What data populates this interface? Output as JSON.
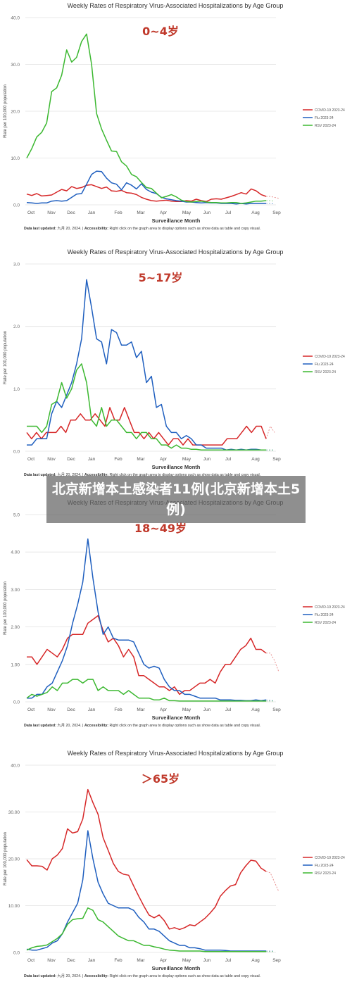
{
  "overlay_text": "北京新增本土感染者11例(北京新增本土5例)",
  "chart_data": [
    {
      "type": "line",
      "title": "Weekly Rates of Respiratory Virus-Associated Hospitalizations by Age Group",
      "subtitle": "0~4岁",
      "ylabel": "Rate per 100,000 population",
      "xlabel": "Surveillance Month",
      "ylim": [
        0,
        40
      ],
      "yticks": [
        "0.0",
        "10.0",
        "20.0",
        "30.0",
        "40.0"
      ],
      "xticks": [
        "Oct",
        "Nov",
        "Dec",
        "Jan",
        "Feb",
        "Mar",
        "Apr",
        "May",
        "Jun",
        "Jul",
        "Aug",
        "Sep"
      ],
      "note_label": "Data last updated:",
      "note_date": "九月 20, 2024.",
      "note_sep": " | ",
      "note_acc_label": "Accessibility:",
      "note_acc_text": " Right click on the graph area to display options such as show data as table and copy visual.",
      "series": [
        {
          "name": "COVID-19 2023-24",
          "color": "#d62728",
          "values": [
            2.3,
            2.0,
            2.4,
            1.9,
            2.0,
            2.1,
            2.7,
            3.3,
            3.0,
            3.9,
            3.5,
            3.7,
            4.2,
            4.3,
            3.9,
            3.5,
            3.8,
            3.0,
            2.9,
            3.1,
            2.6,
            2.5,
            2.2,
            1.6,
            1.2,
            0.9,
            0.8,
            0.9,
            1.0,
            0.8,
            0.7,
            0.7,
            0.9,
            0.8,
            1.2,
            0.9,
            0.7,
            1.2,
            1.3,
            1.2,
            1.5,
            1.8,
            2.2,
            2.6,
            2.3,
            3.4,
            3.0,
            2.2,
            1.8
          ],
          "projection": [
            1.8,
            1.6,
            1.4
          ]
        },
        {
          "name": "Flu 2023-24",
          "color": "#1f5fbf",
          "values": [
            0.5,
            0.4,
            0.3,
            0.4,
            0.4,
            0.8,
            0.9,
            0.8,
            0.9,
            1.6,
            2.3,
            2.4,
            4.4,
            6.5,
            7.2,
            7.1,
            5.7,
            4.7,
            4.4,
            3.2,
            4.7,
            4.2,
            3.4,
            4.5,
            3.3,
            2.7,
            2.4,
            1.6,
            1.3,
            1.1,
            0.9,
            0.8,
            0.6,
            0.6,
            0.5,
            0.4,
            0.5,
            0.4,
            0.4,
            0.3,
            0.3,
            0.3,
            0.2,
            0.3,
            0.2,
            0.3,
            0.3,
            0.3,
            0.3
          ],
          "projection": [
            0.3,
            0.2
          ]
        },
        {
          "name": "RSV 2023-24",
          "color": "#3cb831",
          "values": [
            10.0,
            12.0,
            14.5,
            15.5,
            17.5,
            24.2,
            25.0,
            27.7,
            33.1,
            30.5,
            31.5,
            34.9,
            36.5,
            30.0,
            19.5,
            16.2,
            13.8,
            11.5,
            11.4,
            9.2,
            8.3,
            6.5,
            6.0,
            4.8,
            3.7,
            3.5,
            2.5,
            1.5,
            1.8,
            2.2,
            1.7,
            1.0,
            0.7,
            0.6,
            0.7,
            0.8,
            0.6,
            0.5,
            0.5,
            0.4,
            0.4,
            0.5,
            0.5,
            0.3,
            0.4,
            0.6,
            0.8,
            0.8,
            0.9
          ],
          "projection": [
            0.9,
            0.8
          ]
        }
      ]
    },
    {
      "type": "line",
      "title": "Weekly Rates of Respiratory Virus-Associated Hospitalizations by Age Group",
      "subtitle": "5~17岁",
      "ylabel": "Rate per 100,000 population",
      "xlabel": "Surveillance Month",
      "ylim": [
        0,
        3
      ],
      "yticks": [
        "0.0",
        "1.0",
        "2.0",
        "3.0"
      ],
      "xticks": [
        "Oct",
        "Nov",
        "Dec",
        "Jan",
        "Feb",
        "Mar",
        "Apr",
        "May",
        "Jun",
        "Jul",
        "Aug",
        "Sep"
      ],
      "note_label": "Data last updated:",
      "note_date": "九月 20, 2024.",
      "note_sep": " | ",
      "note_acc_label": "Accessibility:",
      "note_acc_text": " Right click on the graph area to display options such as show data as table and copy visual.",
      "series": [
        {
          "name": "COVID-19 2023-24",
          "color": "#d62728",
          "values": [
            0.3,
            0.2,
            0.3,
            0.2,
            0.3,
            0.3,
            0.3,
            0.4,
            0.3,
            0.5,
            0.5,
            0.6,
            0.5,
            0.5,
            0.6,
            0.5,
            0.4,
            0.7,
            0.5,
            0.5,
            0.7,
            0.5,
            0.3,
            0.3,
            0.2,
            0.3,
            0.2,
            0.3,
            0.2,
            0.1,
            0.2,
            0.2,
            0.1,
            0.2,
            0.1,
            0.1,
            0.1,
            0.1,
            0.1,
            0.1,
            0.1,
            0.2,
            0.2,
            0.2,
            0.3,
            0.4,
            0.3,
            0.4,
            0.4,
            0.2
          ],
          "projection": [
            0.4,
            0.3
          ]
        },
        {
          "name": "Flu 2023-24",
          "color": "#1f5fbf",
          "values": [
            0.1,
            0.1,
            0.2,
            0.2,
            0.2,
            0.6,
            0.8,
            0.7,
            0.9,
            1.1,
            1.4,
            1.8,
            2.75,
            2.3,
            1.8,
            1.75,
            1.4,
            1.95,
            1.9,
            1.7,
            1.7,
            1.75,
            1.5,
            1.6,
            1.1,
            1.2,
            0.7,
            0.75,
            0.4,
            0.3,
            0.3,
            0.2,
            0.25,
            0.2,
            0.1,
            0.1,
            0.05,
            0.05,
            0.05,
            0.05,
            0.02,
            0.03,
            0.02,
            0.03,
            0.02,
            0.03,
            0.03,
            0.02,
            0.02
          ],
          "projection": [
            0.02,
            0.02
          ]
        },
        {
          "name": "RSV 2023-24",
          "color": "#3cb831",
          "values": [
            0.4,
            0.4,
            0.4,
            0.3,
            0.4,
            0.75,
            0.8,
            1.1,
            0.85,
            1.0,
            1.3,
            1.4,
            1.1,
            0.5,
            0.4,
            0.7,
            0.4,
            0.5,
            0.5,
            0.4,
            0.3,
            0.3,
            0.2,
            0.3,
            0.3,
            0.2,
            0.2,
            0.1,
            0.1,
            0.05,
            0.1,
            0.05,
            0.05,
            0.03,
            0.03,
            0.02,
            0.02,
            0.02,
            0.02,
            0.02,
            0.02,
            0.02,
            0.02,
            0.02,
            0.02,
            0.02,
            0.02,
            0.02,
            0.02
          ],
          "projection": [
            0.02,
            0.02
          ]
        }
      ]
    },
    {
      "type": "line",
      "title": "Weekly Rates of Respiratory Virus-Associated Hospitalizations by Age Group",
      "subtitle": "18~49岁",
      "ylabel": "Rate per 100,000 population",
      "xlabel": "Surveillance Month",
      "ylim": [
        0,
        5
      ],
      "yticks": [
        "0.0",
        "1.00",
        "2.00",
        "3.00",
        "4.00",
        "5.0"
      ],
      "xticks": [
        "Oct",
        "Nov",
        "Dec",
        "Jan",
        "Feb",
        "Mar",
        "Apr",
        "May",
        "Jun",
        "Jul",
        "Aug",
        "Sep"
      ],
      "note_label": "Data last updated:",
      "note_date": "九月 20, 2024.",
      "note_sep": " | ",
      "note_acc_label": "Accessibility:",
      "note_acc_text": " Right click on the graph area to display options such as show data as table and copy visual.",
      "series": [
        {
          "name": "COVID-19 2023-24",
          "color": "#d62728",
          "values": [
            1.2,
            1.2,
            1.0,
            1.2,
            1.4,
            1.3,
            1.2,
            1.4,
            1.7,
            1.8,
            1.8,
            1.8,
            2.1,
            2.2,
            2.3,
            1.9,
            1.6,
            1.7,
            1.5,
            1.2,
            1.4,
            1.2,
            0.7,
            0.7,
            0.6,
            0.5,
            0.4,
            0.4,
            0.3,
            0.4,
            0.2,
            0.3,
            0.3,
            0.4,
            0.5,
            0.5,
            0.6,
            0.5,
            0.8,
            1.0,
            1.0,
            1.2,
            1.4,
            1.5,
            1.7,
            1.4,
            1.4,
            1.3
          ],
          "projection": [
            1.3,
            1.1,
            0.8
          ]
        },
        {
          "name": "Flu 2023-24",
          "color": "#1f5fbf",
          "values": [
            0.1,
            0.1,
            0.2,
            0.2,
            0.4,
            0.5,
            0.8,
            1.1,
            1.5,
            2.1,
            2.6,
            3.2,
            4.35,
            3.3,
            2.4,
            1.8,
            2.0,
            1.7,
            1.65,
            1.65,
            1.65,
            1.6,
            1.3,
            1.0,
            0.9,
            0.95,
            0.9,
            0.6,
            0.4,
            0.3,
            0.3,
            0.2,
            0.2,
            0.15,
            0.1,
            0.1,
            0.1,
            0.1,
            0.05,
            0.05,
            0.05,
            0.04,
            0.04,
            0.03,
            0.03,
            0.05,
            0.03,
            0.05
          ],
          "projection": [
            0.04,
            0.03
          ]
        },
        {
          "name": "RSV 2023-24",
          "color": "#3cb831",
          "values": [
            0.1,
            0.2,
            0.15,
            0.2,
            0.25,
            0.4,
            0.3,
            0.5,
            0.5,
            0.6,
            0.6,
            0.5,
            0.6,
            0.6,
            0.3,
            0.4,
            0.3,
            0.3,
            0.3,
            0.2,
            0.3,
            0.2,
            0.1,
            0.1,
            0.1,
            0.05,
            0.05,
            0.1,
            0.03,
            0.03,
            0.02,
            0.02,
            0.02,
            0.02,
            0.02,
            0.02,
            0.02,
            0.02,
            0.02,
            0.02,
            0.02,
            0.02,
            0.02,
            0.02,
            0.02,
            0.02,
            0.02,
            0.02
          ],
          "projection": [
            0.02,
            0.02
          ]
        }
      ]
    },
    {
      "type": "line",
      "title": "Weekly Rates of Respiratory Virus-Associated Hospitalizations by Age Group",
      "subtitle": "＞65岁",
      "ylabel": "Rate per 100,000 population",
      "xlabel": "Surveillance Month",
      "ylim": [
        0,
        40
      ],
      "yticks": [
        "0.0",
        "10.00",
        "20.00",
        "30.00",
        "40.0"
      ],
      "xticks": [
        "Oct",
        "Nov",
        "Dec",
        "Jan",
        "Feb",
        "Mar",
        "Apr",
        "May",
        "Jun",
        "Jul",
        "Aug",
        "Sep"
      ],
      "note_label": "Data last updated:",
      "note_date": "九月 20, 2024.",
      "note_sep": " | ",
      "note_acc_label": "Accessibility:",
      "note_acc_text": " Right click on the graph area to display options such as show data as table and copy visual.",
      "series": [
        {
          "name": "COVID-19 2023-24",
          "color": "#d62728",
          "values": [
            19.8,
            18.5,
            18.5,
            18.4,
            17.6,
            20.0,
            20.8,
            22.2,
            26.4,
            25.5,
            25.8,
            28.5,
            34.8,
            32.0,
            29.5,
            24.5,
            21.8,
            19.0,
            17.3,
            16.7,
            16.5,
            14.2,
            12.0,
            9.9,
            8.0,
            7.4,
            8.0,
            6.8,
            5.0,
            5.3,
            4.9,
            5.3,
            5.9,
            5.7,
            6.5,
            7.3,
            8.4,
            9.7,
            12.0,
            13.2,
            14.2,
            14.5,
            17.0,
            18.5,
            19.7,
            19.5,
            18.0,
            17.3
          ],
          "projection": [
            17.0,
            15.0,
            13.0
          ]
        },
        {
          "name": "Flu 2023-24",
          "color": "#1f5fbf",
          "values": [
            0.7,
            0.5,
            0.5,
            0.8,
            1.1,
            2.0,
            2.5,
            4.0,
            6.5,
            8.5,
            10.5,
            15.5,
            26.0,
            20.0,
            15.0,
            12.5,
            10.5,
            10.0,
            9.5,
            9.5,
            9.5,
            9.0,
            7.5,
            6.5,
            5.0,
            5.0,
            4.5,
            3.5,
            2.5,
            2.0,
            1.5,
            1.5,
            1.0,
            1.0,
            0.8,
            0.5,
            0.5,
            0.5,
            0.5,
            0.4,
            0.3,
            0.3,
            0.3,
            0.3,
            0.3,
            0.3,
            0.3,
            0.3
          ],
          "projection": [
            0.3,
            0.3
          ]
        },
        {
          "name": "RSV 2023-24",
          "color": "#3cb831",
          "values": [
            0.5,
            1.0,
            1.3,
            1.4,
            1.6,
            2.3,
            3.0,
            4.0,
            6.0,
            7.0,
            7.2,
            7.3,
            9.5,
            9.0,
            7.0,
            6.5,
            5.5,
            4.5,
            3.5,
            3.0,
            2.5,
            2.5,
            2.0,
            1.5,
            1.5,
            1.2,
            1.0,
            0.7,
            0.5,
            0.4,
            0.3,
            0.3,
            0.3,
            0.3,
            0.3,
            0.2,
            0.2,
            0.2,
            0.2,
            0.2,
            0.2,
            0.2,
            0.2,
            0.2,
            0.2,
            0.2,
            0.2,
            0.2
          ],
          "projection": [
            0.2,
            0.2
          ]
        }
      ]
    }
  ]
}
